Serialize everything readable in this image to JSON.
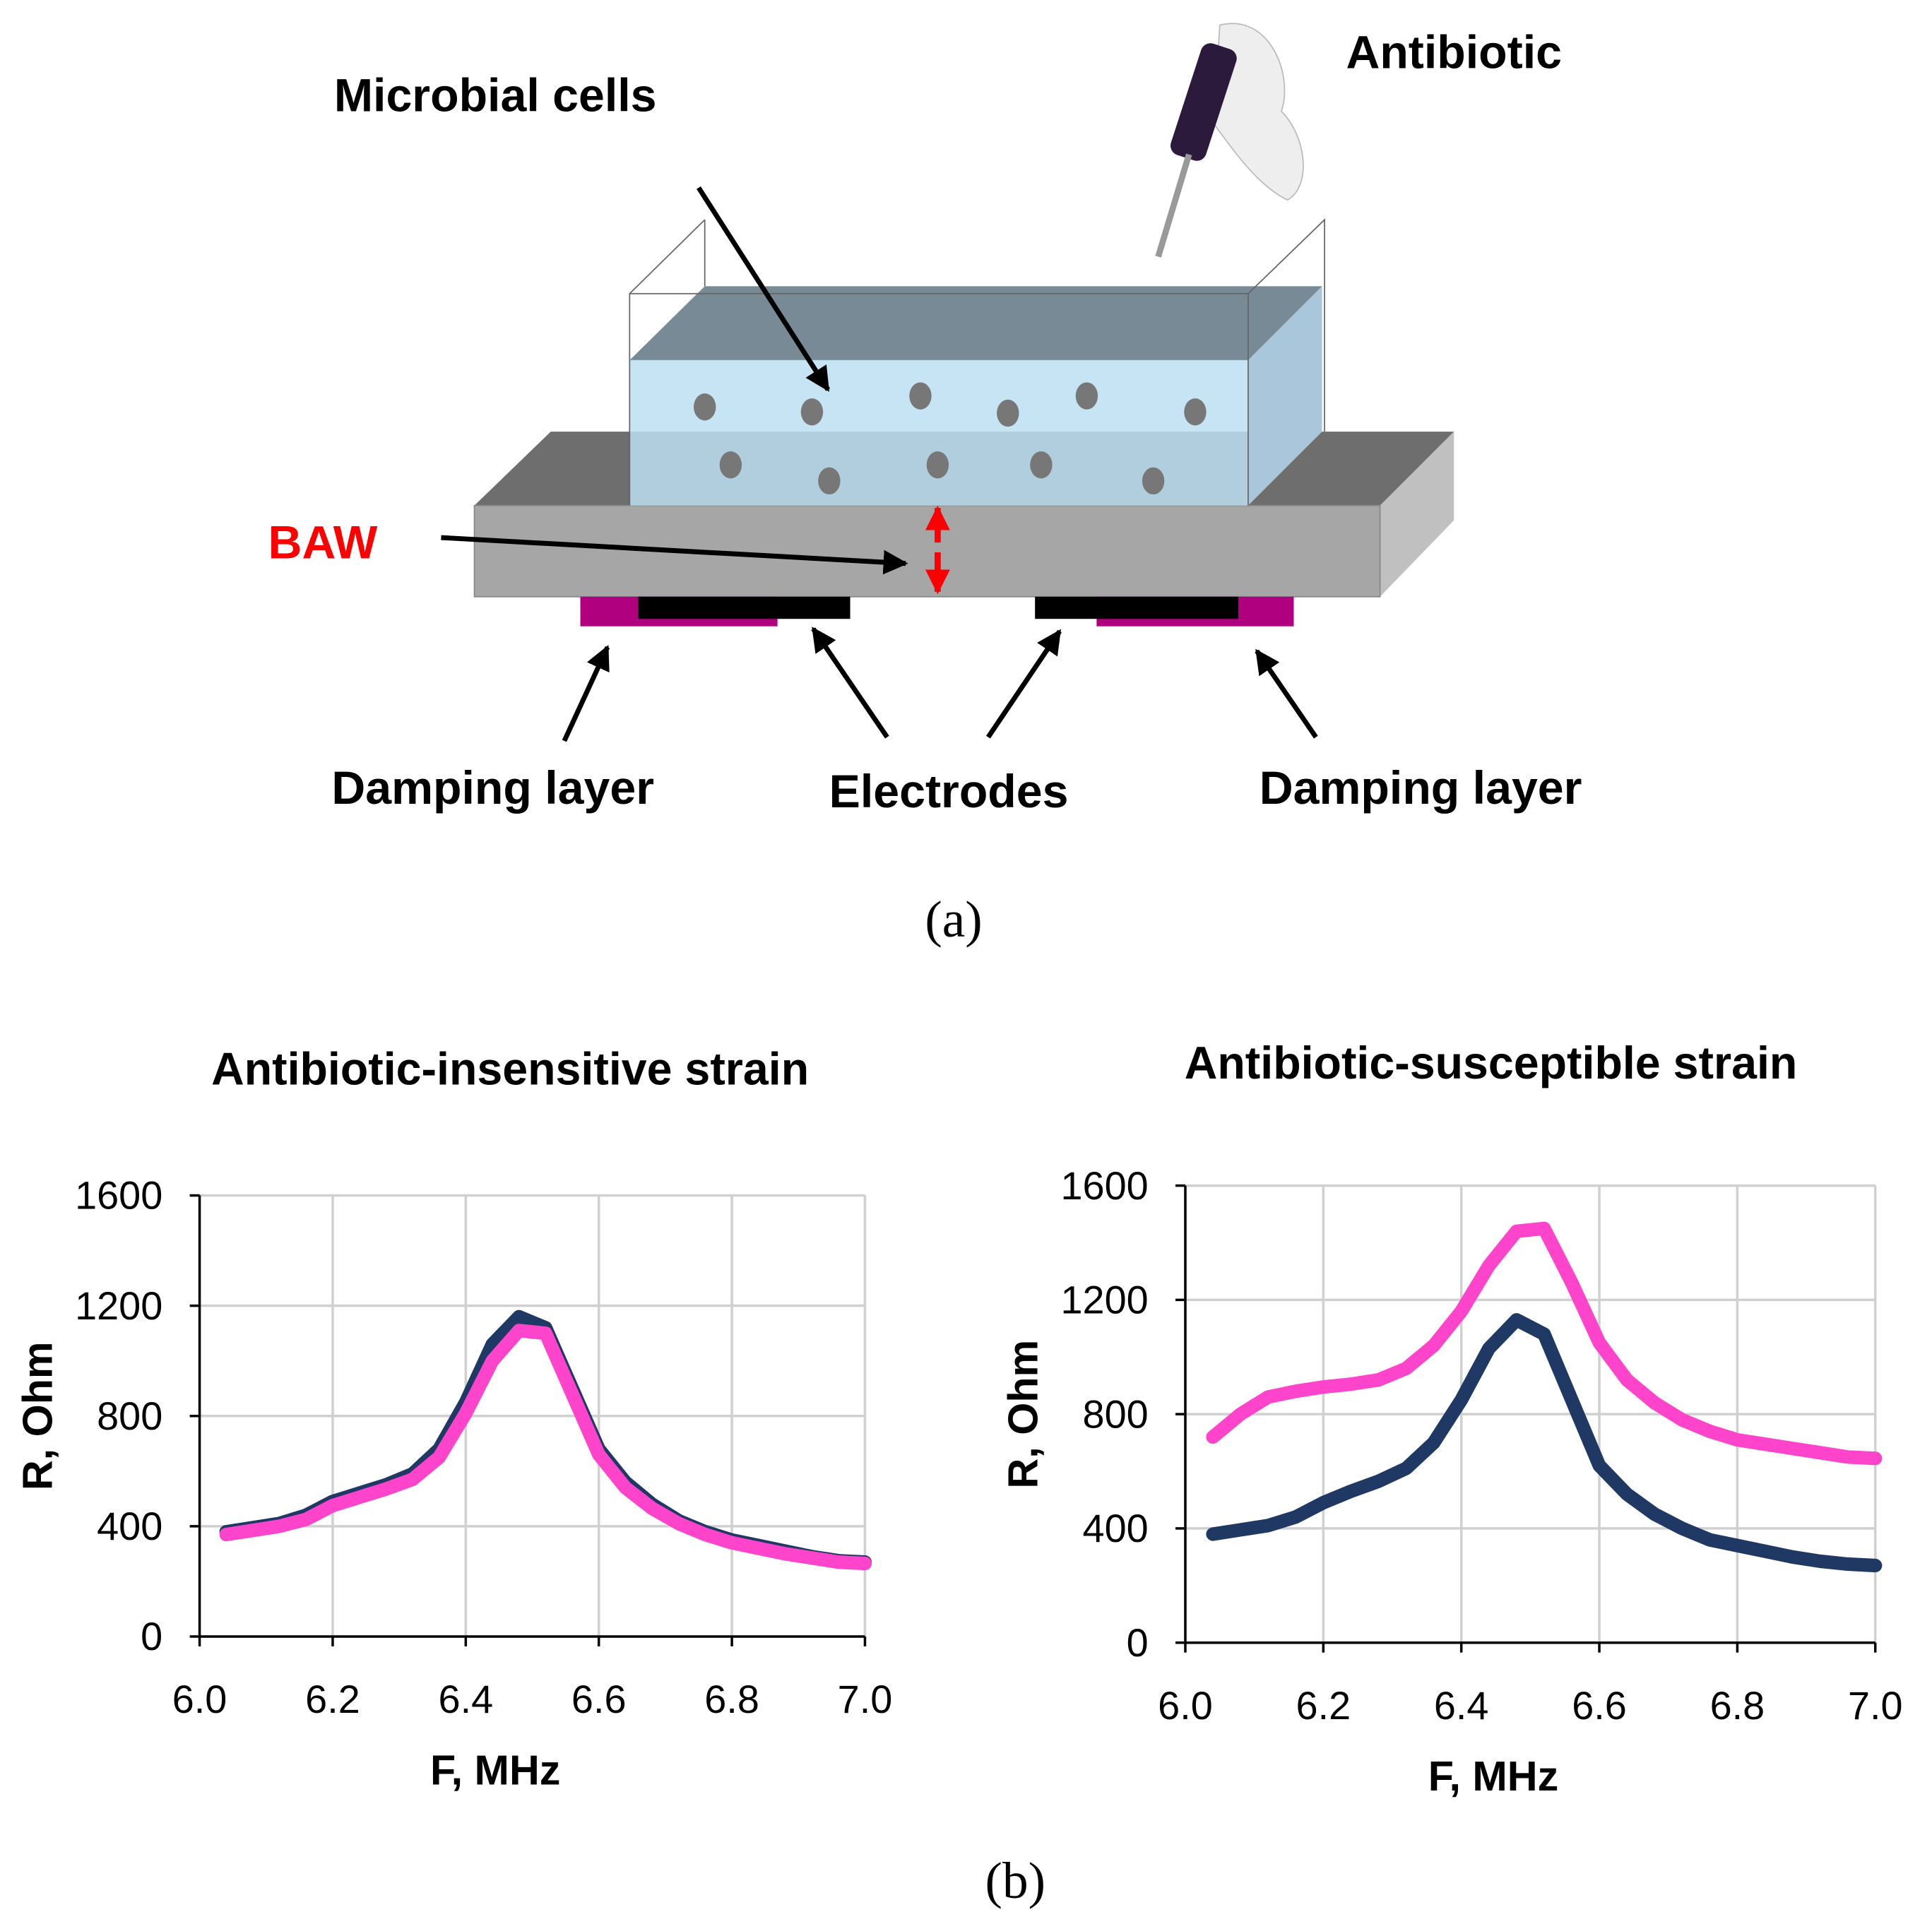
{
  "diagram": {
    "microbial_cells": "Microbial cells",
    "antibiotic": "Antibiotic",
    "baw": "BAW",
    "damping_left": "Damping layer",
    "electrodes": "Electrodes",
    "damping_right": "Damping layer"
  },
  "panel_labels": [
    "(a)",
    "(b)"
  ],
  "chart_data": [
    {
      "type": "line",
      "title": "Antibiotic-insensitive strain",
      "xlabel": "F, MHz",
      "ylabel": "R, Ohm",
      "x": [
        6.04,
        6.08,
        6.12,
        6.16,
        6.2,
        6.24,
        6.28,
        6.32,
        6.36,
        6.4,
        6.44,
        6.48,
        6.52,
        6.56,
        6.6,
        6.64,
        6.68,
        6.72,
        6.76,
        6.8,
        6.84,
        6.88,
        6.92,
        6.96,
        7.0
      ],
      "series": [
        {
          "color": "#1f3864",
          "values": [
            380,
            395,
            410,
            440,
            490,
            520,
            550,
            590,
            680,
            850,
            1060,
            1160,
            1120,
            900,
            680,
            560,
            480,
            420,
            380,
            350,
            330,
            310,
            290,
            275,
            270
          ]
        },
        {
          "color": "#ff44cc",
          "values": [
            370,
            385,
            400,
            425,
            475,
            505,
            535,
            570,
            650,
            810,
            1000,
            1110,
            1100,
            880,
            660,
            540,
            465,
            410,
            370,
            340,
            320,
            300,
            285,
            270,
            265
          ]
        }
      ],
      "xlim": [
        6.0,
        7.0
      ],
      "xticks": [
        {
          "value": 6.0,
          "label": "6.0"
        },
        6.2,
        6.4,
        6.6,
        6.8,
        {
          "value": 7.0,
          "label": "7.0"
        }
      ],
      "ylim": [
        0,
        1600
      ],
      "yticks": [
        0,
        400,
        800,
        1200,
        1600
      ],
      "grid": true
    },
    {
      "type": "line",
      "title": "Antibiotic-susceptible strain",
      "xlabel": "F, MHz",
      "ylabel": "R, Ohm",
      "x": [
        6.04,
        6.08,
        6.12,
        6.16,
        6.2,
        6.24,
        6.28,
        6.32,
        6.36,
        6.4,
        6.44,
        6.48,
        6.52,
        6.56,
        6.6,
        6.64,
        6.68,
        6.72,
        6.76,
        6.8,
        6.84,
        6.88,
        6.92,
        6.96,
        7.0
      ],
      "series": [
        {
          "color": "#1f3864",
          "values": [
            380,
            395,
            410,
            440,
            490,
            530,
            565,
            610,
            700,
            850,
            1030,
            1130,
            1080,
            850,
            620,
            520,
            450,
            400,
            360,
            340,
            320,
            300,
            285,
            275,
            270
          ]
        },
        {
          "color": "#ff44cc",
          "values": [
            720,
            800,
            860,
            880,
            895,
            905,
            920,
            960,
            1040,
            1160,
            1320,
            1440,
            1450,
            1260,
            1050,
            920,
            840,
            780,
            740,
            710,
            695,
            680,
            665,
            650,
            645
          ]
        }
      ],
      "xlim": [
        6.0,
        7.0
      ],
      "xticks": [
        {
          "value": 6.0,
          "label": "6.0"
        },
        6.2,
        6.4,
        6.6,
        6.8,
        {
          "value": 7.0,
          "label": "7.0"
        }
      ],
      "ylim": [
        0,
        1600
      ],
      "yticks": [
        0,
        400,
        800,
        1200,
        1600
      ],
      "grid": true
    }
  ]
}
